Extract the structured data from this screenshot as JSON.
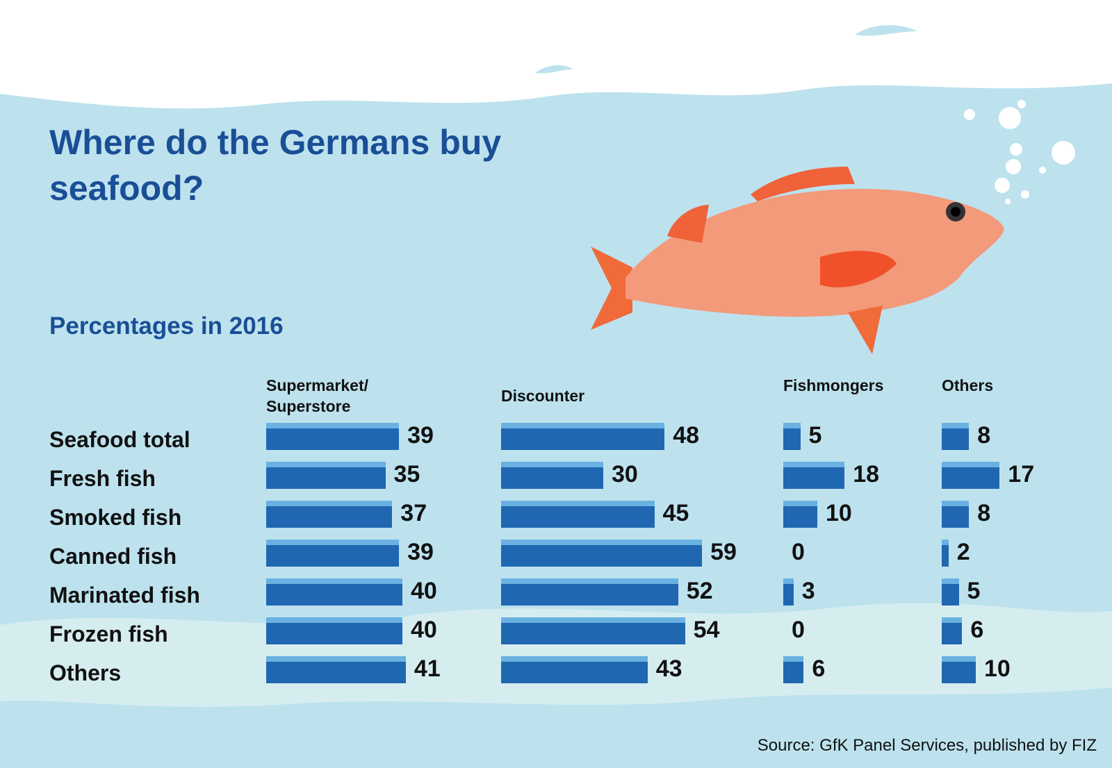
{
  "chart_data": {
    "type": "bar",
    "orientation": "horizontal",
    "title": "Where do the Germans buy seafood?",
    "subtitle": "Percentages in 2016",
    "source": "Source: GfK Panel Services, published by FIZ",
    "categories": [
      "Seafood total",
      "Fresh fish",
      "Smoked fish",
      "Canned fish",
      "Marinated fish",
      "Frozen fish",
      "Others"
    ],
    "series": [
      {
        "name": "Supermarket/ Superstore",
        "color": "#1f67b0",
        "values": [
          39,
          35,
          37,
          39,
          40,
          40,
          41
        ]
      },
      {
        "name": "Discounter",
        "color": "#1f67b0",
        "values": [
          48,
          30,
          45,
          59,
          52,
          54,
          43
        ]
      },
      {
        "name": "Fishmongers",
        "color": "#1f67b0",
        "values": [
          5,
          18,
          10,
          0,
          3,
          0,
          6
        ]
      },
      {
        "name": "Others",
        "color": "#1f67b0",
        "values": [
          8,
          17,
          8,
          2,
          5,
          6,
          10
        ]
      }
    ]
  }
}
